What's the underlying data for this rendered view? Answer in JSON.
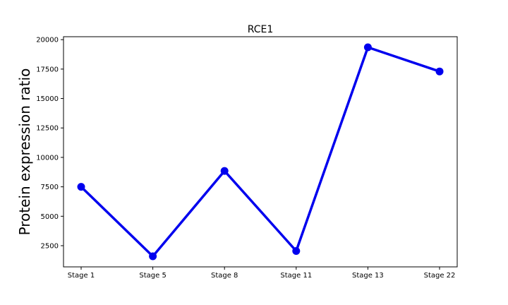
{
  "chart_data": {
    "type": "line",
    "title": "RCE1",
    "xlabel": "",
    "ylabel": "Protein expression ratio",
    "categories": [
      "Stage 1",
      "Stage 5",
      "Stage 8",
      "Stage 11",
      "Stage 13",
      "Stage 22"
    ],
    "series": [
      {
        "values": [
          7500,
          1600,
          8850,
          2050,
          19350,
          17300
        ],
        "color": "#0000ee"
      }
    ],
    "ylim": [
      700,
      20250
    ],
    "yticks": [
      2500,
      5000,
      7500,
      10000,
      12500,
      15000,
      17500,
      20000
    ],
    "grid": false
  }
}
